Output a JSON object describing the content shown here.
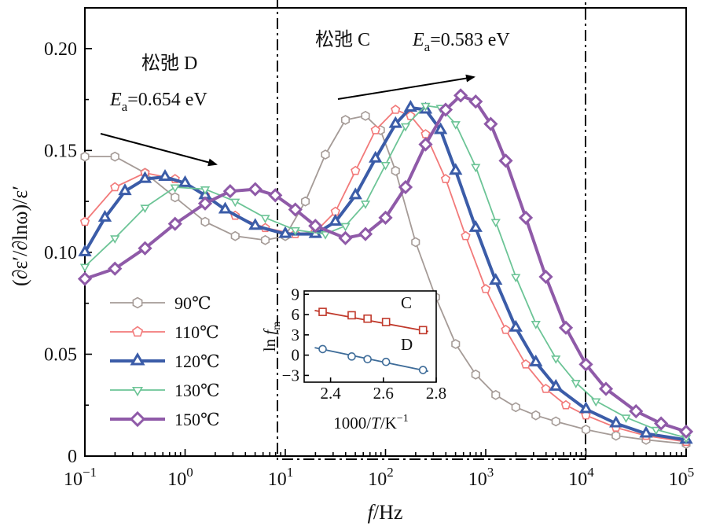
{
  "chart_data": {
    "type": "line",
    "title": "",
    "xlabel": "f/Hz",
    "xlabel_italic": "f",
    "xlabel_unit": "/Hz",
    "ylabel": "(∂ε′/∂lnω)/ε′",
    "xscale": "log",
    "xlim": [
      0.1,
      100000
    ],
    "ylim": [
      0,
      0.22
    ],
    "x_ticks": [
      0.1,
      1,
      10,
      100,
      1000,
      10000,
      100000
    ],
    "x_tick_labels": [
      {
        "base": "10",
        "exp": "−1"
      },
      {
        "base": "10",
        "exp": "0"
      },
      {
        "base": "10",
        "exp": "1"
      },
      {
        "base": "10",
        "exp": "2"
      },
      {
        "base": "10",
        "exp": "3"
      },
      {
        "base": "10",
        "exp": "4"
      },
      {
        "base": "10",
        "exp": "5"
      }
    ],
    "y_ticks": [
      0,
      0.05,
      0.1,
      0.15,
      0.2
    ],
    "y_tick_labels": [
      "0",
      "0.05",
      "0.10",
      "0.15",
      "0.20"
    ],
    "legend_position": "lower-left",
    "series": [
      {
        "name": "90℃",
        "color": "#a59b97",
        "marker": "hexagon",
        "bold": false,
        "points": [
          [
            -1,
            0.147
          ],
          [
            -0.7,
            0.147
          ],
          [
            -0.4,
            0.139
          ],
          [
            -0.1,
            0.127
          ],
          [
            0.2,
            0.115
          ],
          [
            0.5,
            0.108
          ],
          [
            0.8,
            0.106
          ],
          [
            1.0,
            0.108
          ],
          [
            1.2,
            0.125
          ],
          [
            1.4,
            0.148
          ],
          [
            1.6,
            0.165
          ],
          [
            1.8,
            0.167
          ],
          [
            1.95,
            0.16
          ],
          [
            2.1,
            0.14
          ],
          [
            2.3,
            0.105
          ],
          [
            2.5,
            0.078
          ],
          [
            2.7,
            0.055
          ],
          [
            2.9,
            0.04
          ],
          [
            3.1,
            0.03
          ],
          [
            3.3,
            0.024
          ],
          [
            3.5,
            0.02
          ],
          [
            3.7,
            0.017
          ],
          [
            4.0,
            0.013
          ],
          [
            4.3,
            0.01
          ],
          [
            4.6,
            0.008
          ],
          [
            5.0,
            0.006
          ]
        ]
      },
      {
        "name": "110℃",
        "color": "#f27a7a",
        "marker": "pentagon",
        "bold": false,
        "points": [
          [
            -1,
            0.115
          ],
          [
            -0.7,
            0.132
          ],
          [
            -0.4,
            0.139
          ],
          [
            -0.1,
            0.136
          ],
          [
            0.2,
            0.128
          ],
          [
            0.5,
            0.118
          ],
          [
            0.8,
            0.112
          ],
          [
            1.1,
            0.109
          ],
          [
            1.3,
            0.11
          ],
          [
            1.5,
            0.12
          ],
          [
            1.7,
            0.14
          ],
          [
            1.9,
            0.16
          ],
          [
            2.1,
            0.17
          ],
          [
            2.25,
            0.167
          ],
          [
            2.4,
            0.158
          ],
          [
            2.6,
            0.136
          ],
          [
            2.8,
            0.108
          ],
          [
            3.0,
            0.082
          ],
          [
            3.2,
            0.062
          ],
          [
            3.4,
            0.045
          ],
          [
            3.6,
            0.033
          ],
          [
            3.8,
            0.025
          ],
          [
            4.0,
            0.02
          ],
          [
            4.3,
            0.014
          ],
          [
            4.6,
            0.01
          ],
          [
            5.0,
            0.007
          ]
        ]
      },
      {
        "name": "120℃",
        "color": "#3b5ca8",
        "marker": "triangle",
        "bold": true,
        "points": [
          [
            -1,
            0.1
          ],
          [
            -0.8,
            0.117
          ],
          [
            -0.6,
            0.13
          ],
          [
            -0.4,
            0.136
          ],
          [
            -0.2,
            0.137
          ],
          [
            0.0,
            0.134
          ],
          [
            0.2,
            0.128
          ],
          [
            0.4,
            0.121
          ],
          [
            0.7,
            0.113
          ],
          [
            1.0,
            0.109
          ],
          [
            1.3,
            0.109
          ],
          [
            1.5,
            0.115
          ],
          [
            1.7,
            0.128
          ],
          [
            1.9,
            0.146
          ],
          [
            2.1,
            0.163
          ],
          [
            2.25,
            0.171
          ],
          [
            2.4,
            0.17
          ],
          [
            2.55,
            0.16
          ],
          [
            2.7,
            0.14
          ],
          [
            2.9,
            0.112
          ],
          [
            3.1,
            0.086
          ],
          [
            3.3,
            0.063
          ],
          [
            3.5,
            0.046
          ],
          [
            3.7,
            0.034
          ],
          [
            4.0,
            0.023
          ],
          [
            4.3,
            0.016
          ],
          [
            4.6,
            0.011
          ],
          [
            5.0,
            0.008
          ]
        ]
      },
      {
        "name": "130℃",
        "color": "#6cc496",
        "marker": "triangle-down",
        "bold": false,
        "points": [
          [
            -1,
            0.093
          ],
          [
            -0.7,
            0.107
          ],
          [
            -0.4,
            0.122
          ],
          [
            -0.1,
            0.132
          ],
          [
            0.2,
            0.131
          ],
          [
            0.5,
            0.125
          ],
          [
            0.8,
            0.117
          ],
          [
            1.1,
            0.111
          ],
          [
            1.4,
            0.109
          ],
          [
            1.6,
            0.113
          ],
          [
            1.8,
            0.124
          ],
          [
            2.0,
            0.143
          ],
          [
            2.2,
            0.162
          ],
          [
            2.4,
            0.172
          ],
          [
            2.55,
            0.171
          ],
          [
            2.7,
            0.163
          ],
          [
            2.9,
            0.142
          ],
          [
            3.1,
            0.115
          ],
          [
            3.3,
            0.088
          ],
          [
            3.5,
            0.065
          ],
          [
            3.7,
            0.048
          ],
          [
            3.9,
            0.036
          ],
          [
            4.1,
            0.027
          ],
          [
            4.4,
            0.019
          ],
          [
            4.7,
            0.013
          ],
          [
            5.0,
            0.009
          ]
        ]
      },
      {
        "name": "150℃",
        "color": "#8f5aa8",
        "marker": "diamond",
        "bold": true,
        "points": [
          [
            -1,
            0.087
          ],
          [
            -0.7,
            0.092
          ],
          [
            -0.4,
            0.102
          ],
          [
            -0.1,
            0.114
          ],
          [
            0.2,
            0.124
          ],
          [
            0.45,
            0.13
          ],
          [
            0.7,
            0.131
          ],
          [
            0.9,
            0.128
          ],
          [
            1.1,
            0.121
          ],
          [
            1.3,
            0.113
          ],
          [
            1.6,
            0.107
          ],
          [
            1.8,
            0.109
          ],
          [
            2.0,
            0.117
          ],
          [
            2.2,
            0.132
          ],
          [
            2.4,
            0.153
          ],
          [
            2.6,
            0.17
          ],
          [
            2.75,
            0.177
          ],
          [
            2.9,
            0.174
          ],
          [
            3.05,
            0.163
          ],
          [
            3.2,
            0.145
          ],
          [
            3.4,
            0.117
          ],
          [
            3.6,
            0.088
          ],
          [
            3.8,
            0.063
          ],
          [
            4.0,
            0.045
          ],
          [
            4.2,
            0.033
          ],
          [
            4.5,
            0.022
          ],
          [
            4.75,
            0.016
          ],
          [
            5.0,
            0.012
          ]
        ]
      }
    ],
    "annotations": {
      "relaxD_title": "松弛 D",
      "relaxD_ea": "=0.654 eV",
      "relaxC_title": "松弛 C",
      "relaxC_ea": "=0.583 eV",
      "ea_symbol": "E",
      "ea_sub": "a"
    },
    "inset": {
      "type": "scatter",
      "xlabel": "1000/T/K−1",
      "xlabel_parts": {
        "pre": "1000/",
        "italic": "T",
        "mid": "/K",
        "sup": "−1"
      },
      "ylabel": "ln fm",
      "ylabel_parts": {
        "pre": "ln ",
        "italic": "f",
        "sub": "m"
      },
      "xlim": [
        2.3,
        2.8
      ],
      "ylim": [
        -4,
        9.5
      ],
      "x_ticks": [
        2.4,
        2.6,
        2.8
      ],
      "x_tick_labels": [
        "2.4",
        "2.6",
        "2.8"
      ],
      "y_ticks": [
        -3,
        0,
        3,
        6,
        9
      ],
      "y_tick_labels": [
        "−3",
        "0",
        "3",
        "6",
        "9"
      ],
      "series": [
        {
          "name": "C",
          "color": "#c0392b",
          "marker": "square",
          "points": [
            [
              2.37,
              6.4
            ],
            [
              2.48,
              5.9
            ],
            [
              2.54,
              5.4
            ],
            [
              2.61,
              4.9
            ],
            [
              2.75,
              3.7
            ]
          ],
          "fit": [
            [
              2.34,
              6.6
            ],
            [
              2.77,
              3.5
            ]
          ]
        },
        {
          "name": "D",
          "color": "#3e6c99",
          "marker": "circle",
          "points": [
            [
              2.37,
              0.9
            ],
            [
              2.48,
              -0.2
            ],
            [
              2.54,
              -0.6
            ],
            [
              2.61,
              -1.0
            ],
            [
              2.75,
              -2.2
            ]
          ],
          "fit": [
            [
              2.34,
              1.1
            ],
            [
              2.77,
              -2.4
            ]
          ]
        }
      ]
    }
  }
}
